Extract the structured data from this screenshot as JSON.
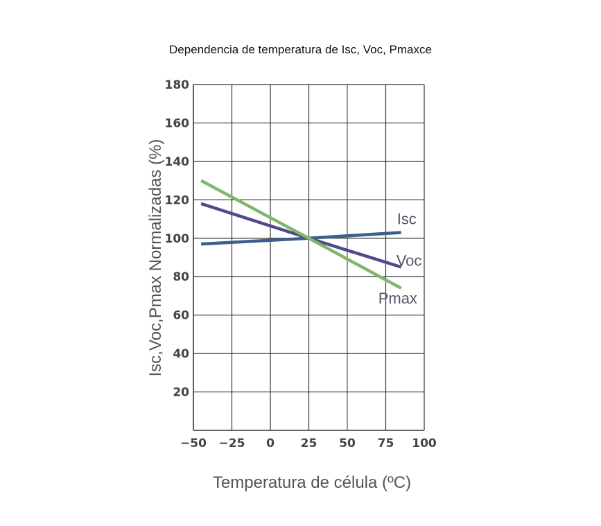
{
  "chart_data": {
    "type": "line",
    "title": "Dependencia de temperatura de Isc, Voc, Pmaxce",
    "xlabel": "Temperatura de célula (ºC)",
    "ylabel": "Isc,Voc,Pmax Normalizadas (%)",
    "xlim": [
      -50,
      100
    ],
    "ylim": [
      0,
      180
    ],
    "xticks": [
      -50,
      -25,
      0,
      25,
      50,
      75,
      100
    ],
    "xtick_labels": [
      "−50",
      "−25",
      "0",
      "25",
      "50",
      "75",
      "100"
    ],
    "yticks": [
      20,
      40,
      60,
      80,
      100,
      120,
      140,
      160,
      180
    ],
    "ytick_labels": [
      "20",
      "40",
      "60",
      "80",
      "100",
      "120",
      "140",
      "160",
      "180"
    ],
    "grid": true,
    "series": [
      {
        "name": "Isc",
        "color": "#3d5f8f",
        "points": [
          [
            -45,
            97
          ],
          [
            25,
            100
          ],
          [
            85,
            103
          ]
        ]
      },
      {
        "name": "Voc",
        "color": "#514a8a",
        "points": [
          [
            -45,
            118
          ],
          [
            25,
            100
          ],
          [
            85,
            85
          ]
        ]
      },
      {
        "name": "Pmax",
        "color": "#7fb86a",
        "points": [
          [
            -45,
            130
          ],
          [
            25,
            100
          ],
          [
            85,
            74
          ]
        ]
      }
    ]
  }
}
